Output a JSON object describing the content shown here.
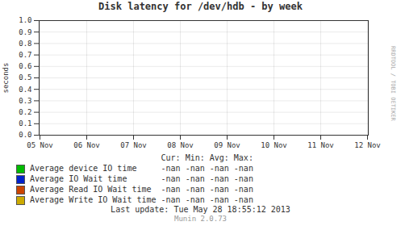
{
  "chart_data": {
    "type": "line",
    "title": "Disk latency for /dev/hdb - by week",
    "ylabel": "seconds",
    "categories": [
      "05 Nov",
      "06 Nov",
      "07 Nov",
      "08 Nov",
      "09 Nov",
      "10 Nov",
      "11 Nov",
      "12 Nov"
    ],
    "series": [
      {
        "name": "Average device IO time",
        "color": "#00bb00",
        "values": [
          null,
          null,
          null,
          null,
          null,
          null,
          null,
          null
        ],
        "stats": [
          "-nan",
          "-nan",
          "-nan",
          "-nan"
        ]
      },
      {
        "name": "Average IO Wait time",
        "color": "#0022cc",
        "values": [
          null,
          null,
          null,
          null,
          null,
          null,
          null,
          null
        ],
        "stats": [
          "-nan",
          "-nan",
          "-nan",
          "-nan"
        ]
      },
      {
        "name": "Average Read IO Wait time",
        "color": "#cc4400",
        "values": [
          null,
          null,
          null,
          null,
          null,
          null,
          null,
          null
        ],
        "stats": [
          "-nan",
          "-nan",
          "-nan",
          "-nan"
        ]
      },
      {
        "name": "Average Write IO Wait time",
        "color": "#ccaa00",
        "values": [
          null,
          null,
          null,
          null,
          null,
          null,
          null,
          null
        ],
        "stats": [
          "-nan",
          "-nan",
          "-nan",
          "-nan"
        ]
      }
    ],
    "stats_header": [
      "Cur:",
      "Min:",
      "Avg:",
      "Max:"
    ],
    "ylim": [
      0.0,
      1.0
    ],
    "yticks": [
      {
        "value": 0.0,
        "label": "0.0"
      },
      0.1,
      0.2,
      0.3,
      0.4,
      0.5,
      0.6,
      0.7,
      0.8,
      0.9,
      {
        "value": 1.0,
        "label": "1.0"
      }
    ],
    "grid": true,
    "footer": [
      "Last update: Tue May 28 18:55:12 2013",
      "Munin 2.0.73"
    ],
    "watermark": "RRDTOOL / TOBI OETIKER"
  }
}
